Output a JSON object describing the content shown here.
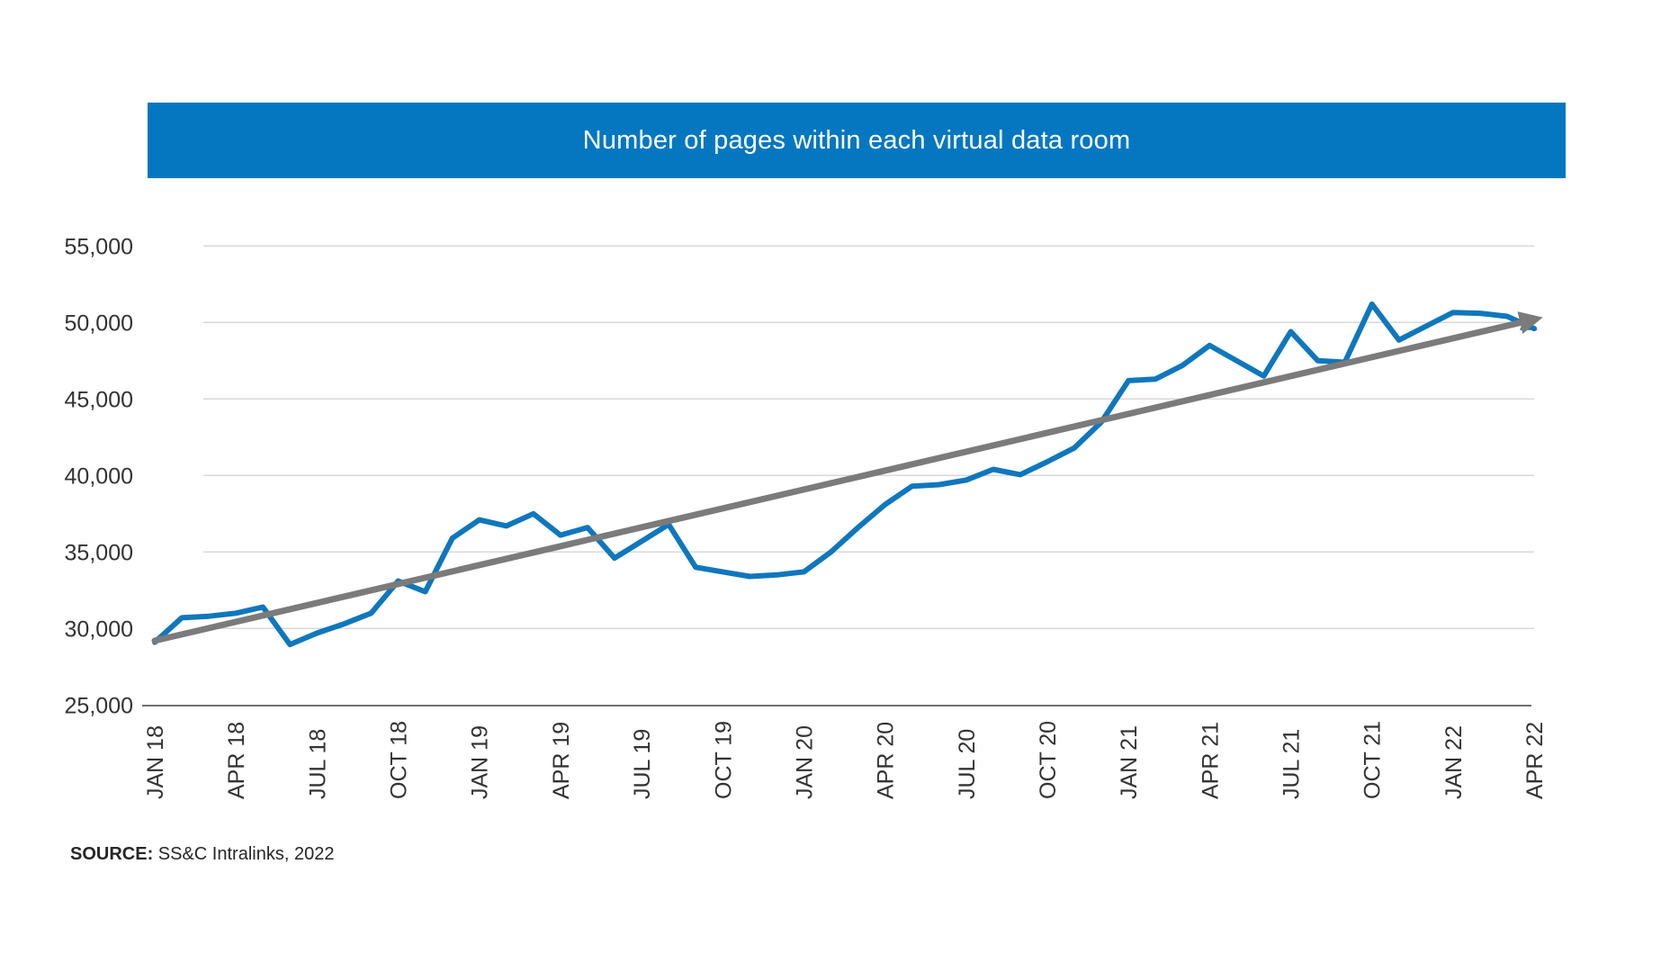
{
  "header": {
    "title": "Number of pages within each virtual data room",
    "bg_color": "#0577C1",
    "text_color": "#ffffff"
  },
  "source": {
    "label": "SOURCE:",
    "text": " SS&C Intralinks, 2022"
  },
  "chart_data": {
    "type": "line",
    "title": "Number of pages within each virtual data room",
    "xlabel": "",
    "ylabel": "",
    "ylim": [
      25000,
      55000
    ],
    "grid": true,
    "legend_position": "none",
    "y_tick_labels": [
      "25,000",
      "30,000",
      "35,000",
      "40,000",
      "45,000",
      "50,000",
      "55,000"
    ],
    "y_tick_values": [
      25000,
      30000,
      35000,
      40000,
      45000,
      50000,
      55000
    ],
    "x_tick_labels": [
      "JAN 18",
      "APR 18",
      "JUL 18",
      "OCT 18",
      "JAN 19",
      "APR 19",
      "JUL 19",
      "OCT 19",
      "JAN 20",
      "APR 20",
      "JUL 20",
      "OCT 20",
      "JAN 21",
      "APR 21",
      "JUL 21",
      "OCT 21",
      "JAN 22",
      "APR 22"
    ],
    "categories": [
      "JAN 18",
      "FEB 18",
      "MAR 18",
      "APR 18",
      "MAY 18",
      "JUN 18",
      "JUL 18",
      "AUG 18",
      "SEP 18",
      "OCT 18",
      "NOV 18",
      "DEC 18",
      "JAN 19",
      "FEB 19",
      "MAR 19",
      "APR 19",
      "MAY 19",
      "JUN 19",
      "JUL 19",
      "AUG 19",
      "SEP 19",
      "OCT 19",
      "NOV 19",
      "DEC 19",
      "JAN 20",
      "FEB 20",
      "MAR 20",
      "APR 20",
      "MAY 20",
      "JUN 20",
      "JUL 20",
      "AUG 20",
      "SEP 20",
      "OCT 20",
      "NOV 20",
      "DEC 20",
      "JAN 21",
      "FEB 21",
      "MAR 21",
      "APR 21",
      "MAY 21",
      "JUN 21",
      "JUL 21",
      "AUG 21",
      "SEP 21",
      "OCT 21",
      "NOV 21",
      "DEC 21",
      "JAN 22",
      "FEB 22",
      "MAR 22",
      "APR 22"
    ],
    "series": [
      {
        "name": "Number of pages",
        "color": "#0F77BD",
        "values": [
          29100,
          30700,
          30800,
          31000,
          31400,
          28950,
          29700,
          30300,
          31000,
          33100,
          32400,
          35900,
          37100,
          36700,
          37500,
          36100,
          36600,
          34600,
          35700,
          36800,
          34000,
          33700,
          33400,
          33500,
          33700,
          35000,
          36600,
          38100,
          39300,
          39400,
          39700,
          40400,
          40050,
          40900,
          41800,
          43500,
          46200,
          46300,
          47200,
          48500,
          47500,
          46500,
          49400,
          47500,
          47400,
          51200,
          48850,
          49750,
          50650,
          50600,
          50400,
          49600
        ],
        "end_marker": "arrow"
      },
      {
        "name": "Trend",
        "color": "#7B7B7B",
        "style": "straight",
        "endpoint_values": [
          29200,
          50200
        ],
        "end_marker": "arrow"
      }
    ],
    "gridline_color": "#D9D9D9",
    "axis_line_color": "#6E6E6E"
  }
}
